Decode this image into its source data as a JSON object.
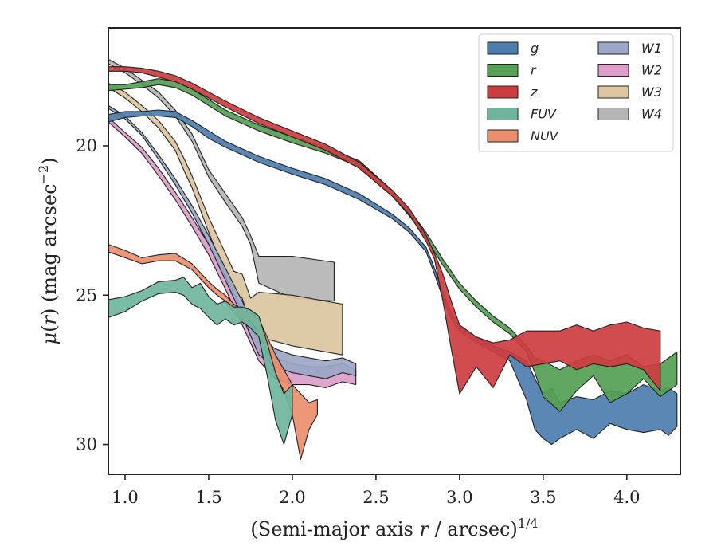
{
  "chart_data": {
    "type": "area",
    "title": "",
    "xlabel": "(Semi-major axis r / arcsec)1/4",
    "ylabel": "μ(r) (mag arcsec−2)",
    "xlim": [
      0.9,
      4.32
    ],
    "ylim": [
      31.0,
      16.05
    ],
    "y_inverted": true,
    "grid": false,
    "legend_position": "top-right",
    "legend_columns": 2,
    "x_ticks": [
      1.0,
      1.5,
      2.0,
      2.5,
      3.0,
      3.5,
      4.0
    ],
    "x_tick_labels": [
      "1.0",
      "1.5",
      "2.0",
      "2.5",
      "3.0",
      "3.5",
      "4.0"
    ],
    "y_ticks": [
      20,
      25,
      30
    ],
    "y_tick_labels": [
      "20",
      "25",
      "30"
    ],
    "series": [
      {
        "name": "g",
        "color": "#4c7dad",
        "x": [
          0.9,
          1.0,
          1.1,
          1.2,
          1.3,
          1.4,
          1.5,
          1.6,
          1.8,
          2.0,
          2.2,
          2.4,
          2.6,
          2.7,
          2.8,
          2.85,
          2.9,
          2.95,
          3.0,
          3.1,
          3.2,
          3.3,
          3.4,
          3.45,
          3.5,
          3.55,
          3.6,
          3.7,
          3.8,
          3.9,
          4.0,
          4.1,
          4.2,
          4.25,
          4.3
        ],
        "lo": [
          18.95,
          18.85,
          18.85,
          18.8,
          18.85,
          19.15,
          19.5,
          19.85,
          20.35,
          20.75,
          21.1,
          21.6,
          22.3,
          22.75,
          23.4,
          24.1,
          24.9,
          25.6,
          26.05,
          26.4,
          26.7,
          26.9,
          27.2,
          27.8,
          28.3,
          28.1,
          28.6,
          28.4,
          28.5,
          28.2,
          28.3,
          28.0,
          28.2,
          28.1,
          28.3
        ],
        "hi": [
          19.2,
          19.05,
          19.0,
          19.0,
          19.05,
          19.35,
          19.75,
          20.05,
          20.55,
          20.95,
          21.3,
          21.8,
          22.45,
          22.9,
          23.55,
          24.3,
          25.1,
          25.8,
          26.2,
          26.6,
          26.9,
          27.2,
          28.5,
          29.5,
          29.8,
          30.0,
          29.8,
          29.5,
          29.8,
          29.3,
          29.5,
          29.6,
          29.5,
          29.7,
          29.4
        ]
      },
      {
        "name": "r",
        "color": "#55a054",
        "x": [
          0.9,
          1.0,
          1.1,
          1.2,
          1.3,
          1.4,
          1.5,
          1.6,
          1.8,
          2.0,
          2.2,
          2.4,
          2.6,
          2.7,
          2.8,
          2.85,
          2.9,
          3.0,
          3.1,
          3.2,
          3.3,
          3.4,
          3.45,
          3.5,
          3.6,
          3.7,
          3.8,
          3.9,
          4.0,
          4.1,
          4.2,
          4.3
        ],
        "lo": [
          17.95,
          17.95,
          17.85,
          17.75,
          17.85,
          18.1,
          18.45,
          18.8,
          19.3,
          19.7,
          20.05,
          20.5,
          21.5,
          22.15,
          22.9,
          23.35,
          23.8,
          24.6,
          25.2,
          25.7,
          26.1,
          26.7,
          27.1,
          27.2,
          27.5,
          27.2,
          27.0,
          27.2,
          27.0,
          27.4,
          27.3,
          26.9
        ],
        "hi": [
          18.15,
          18.1,
          18.05,
          17.95,
          18.05,
          18.3,
          18.65,
          19.0,
          19.5,
          19.9,
          20.25,
          20.7,
          21.7,
          22.35,
          23.1,
          23.55,
          24.0,
          24.8,
          25.4,
          25.9,
          26.3,
          26.9,
          27.6,
          28.4,
          28.9,
          28.2,
          27.7,
          28.6,
          28.3,
          27.8,
          28.4,
          28.0
        ]
      },
      {
        "name": "z",
        "color": "#cc3d3f",
        "x": [
          0.9,
          1.0,
          1.1,
          1.2,
          1.3,
          1.4,
          1.5,
          1.6,
          1.8,
          2.0,
          2.2,
          2.4,
          2.6,
          2.7,
          2.8,
          2.85,
          2.9,
          2.95,
          3.0,
          3.1,
          3.2,
          3.3,
          3.4,
          3.5,
          3.6,
          3.7,
          3.8,
          3.9,
          4.0,
          4.1,
          4.2
        ],
        "lo": [
          17.35,
          17.35,
          17.4,
          17.5,
          17.65,
          17.9,
          18.2,
          18.5,
          19.05,
          19.5,
          19.95,
          20.55,
          21.5,
          22.1,
          23.0,
          23.6,
          24.3,
          25.2,
          26.0,
          26.4,
          26.6,
          26.5,
          26.2,
          26.2,
          26.2,
          26.0,
          26.2,
          26.0,
          25.9,
          26.1,
          26.2
        ],
        "hi": [
          17.5,
          17.5,
          17.55,
          17.7,
          17.85,
          18.1,
          18.4,
          18.7,
          19.25,
          19.7,
          20.15,
          20.75,
          21.7,
          22.3,
          23.2,
          23.8,
          25.2,
          26.8,
          28.3,
          27.4,
          28.1,
          27.0,
          27.4,
          27.3,
          27.2,
          27.5,
          27.3,
          27.4,
          27.3,
          27.5,
          28.2
        ]
      },
      {
        "name": "FUV",
        "color": "#6fb59e",
        "x": [
          0.9,
          1.0,
          1.1,
          1.2,
          1.3,
          1.35,
          1.4,
          1.45,
          1.5,
          1.55,
          1.6,
          1.65,
          1.7,
          1.75,
          1.8,
          1.85,
          1.9,
          1.95,
          2.0
        ],
        "lo": [
          25.15,
          25.05,
          24.85,
          24.55,
          24.5,
          24.4,
          24.75,
          24.6,
          25.05,
          25.3,
          25.2,
          25.4,
          25.4,
          25.5,
          25.7,
          26.6,
          27.6,
          28.3,
          28.0
        ],
        "hi": [
          25.75,
          25.55,
          25.2,
          24.95,
          24.9,
          25.0,
          25.3,
          25.45,
          25.75,
          26.0,
          25.8,
          26.0,
          25.9,
          26.1,
          26.4,
          27.7,
          29.2,
          30.0,
          29.0
        ]
      },
      {
        "name": "NUV",
        "color": "#ea8e6d",
        "x": [
          0.9,
          1.0,
          1.1,
          1.2,
          1.3,
          1.4,
          1.5,
          1.55,
          1.6,
          1.65,
          1.7,
          1.75,
          1.8,
          1.85,
          1.9,
          1.95,
          2.0,
          2.05,
          2.1,
          2.15
        ],
        "lo": [
          23.3,
          23.5,
          23.75,
          23.65,
          23.6,
          23.95,
          24.55,
          24.8,
          25.0,
          25.3,
          25.5,
          25.6,
          25.8,
          26.4,
          27.0,
          27.5,
          28.0,
          28.3,
          28.6,
          28.5
        ],
        "hi": [
          23.55,
          23.75,
          23.95,
          23.85,
          23.85,
          24.15,
          24.75,
          25.0,
          25.2,
          25.6,
          25.8,
          25.9,
          26.2,
          27.0,
          27.7,
          28.2,
          29.0,
          30.5,
          29.5,
          29.0
        ]
      },
      {
        "name": "W1",
        "color": "#9aa7c6",
        "x": [
          0.9,
          1.0,
          1.1,
          1.2,
          1.3,
          1.4,
          1.5,
          1.6,
          1.7,
          1.8,
          1.9,
          2.0,
          2.1,
          2.2,
          2.3,
          2.38
        ],
        "lo": [
          18.65,
          19.0,
          19.55,
          20.3,
          21.1,
          22.0,
          23.0,
          24.1,
          25.2,
          26.4,
          26.8,
          27.0,
          27.1,
          27.2,
          27.1,
          27.3
        ],
        "hi": [
          18.75,
          19.1,
          19.65,
          20.45,
          21.3,
          22.25,
          23.3,
          24.5,
          25.7,
          27.0,
          27.4,
          27.6,
          27.7,
          27.8,
          27.6,
          27.7
        ]
      },
      {
        "name": "W2",
        "color": "#dc9ec9",
        "x": [
          0.9,
          1.0,
          1.1,
          1.2,
          1.3,
          1.4,
          1.5,
          1.6,
          1.7,
          1.8,
          1.9,
          2.0,
          2.1,
          2.2,
          2.3,
          2.38
        ],
        "lo": [
          19.05,
          19.55,
          20.05,
          20.75,
          21.55,
          22.4,
          23.3,
          24.4,
          25.5,
          26.6,
          27.1,
          27.3,
          27.4,
          27.4,
          27.3,
          27.5
        ],
        "hi": [
          19.2,
          19.7,
          20.25,
          21.0,
          21.8,
          22.7,
          23.65,
          24.8,
          26.0,
          27.2,
          27.8,
          28.0,
          28.0,
          28.1,
          27.9,
          28.0
        ]
      },
      {
        "name": "W3",
        "color": "#dcc5a0",
        "x": [
          0.9,
          1.0,
          1.1,
          1.2,
          1.3,
          1.35,
          1.4,
          1.5,
          1.6,
          1.65,
          1.7,
          1.75,
          1.8,
          2.0,
          2.3
        ],
        "lo": [
          17.9,
          18.2,
          18.65,
          19.15,
          19.85,
          20.4,
          21.0,
          22.4,
          23.6,
          24.2,
          24.3,
          25.1,
          24.9,
          25.0,
          25.3
        ],
        "hi": [
          18.05,
          18.4,
          18.85,
          19.4,
          20.15,
          20.8,
          21.4,
          22.9,
          24.3,
          25.0,
          25.1,
          26.0,
          26.4,
          26.7,
          27.0
        ]
      },
      {
        "name": "W4",
        "color": "#b5b5b5",
        "x": [
          0.9,
          1.0,
          1.1,
          1.2,
          1.3,
          1.4,
          1.5,
          1.6,
          1.7,
          1.75,
          1.8,
          2.0,
          2.25
        ],
        "lo": [
          17.1,
          17.4,
          17.8,
          18.2,
          18.8,
          19.6,
          20.8,
          21.6,
          22.4,
          23.0,
          23.7,
          23.7,
          23.9
        ],
        "hi": [
          17.25,
          17.55,
          17.95,
          18.4,
          19.0,
          19.85,
          21.05,
          21.9,
          22.7,
          23.3,
          24.6,
          25.1,
          25.2
        ]
      }
    ]
  }
}
